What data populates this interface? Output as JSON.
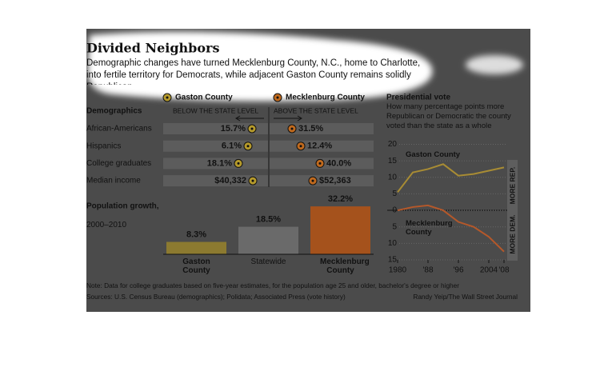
{
  "header": {
    "title": "Divided Neighbors",
    "subtitle": "Demographic changes have turned Mecklenburg County, N.C., home to Charlotte, into fertile territory for Democrats, while adjacent Gaston County remains solidly Republican."
  },
  "legend": [
    "Gaston County",
    "Mecklenburg County"
  ],
  "demographics": {
    "title": "Demographics",
    "below": "BELOW THE STATE LEVEL",
    "above": "ABOVE THE STATE LEVEL",
    "rows": [
      {
        "label": "African-Americans",
        "gaston": "15.7%",
        "mecklenburg": "31.5%"
      },
      {
        "label": "Hispanics",
        "gaston": "6.1%",
        "mecklenburg": "12.4%"
      },
      {
        "label": "College graduates",
        "gaston": "18.1%",
        "mecklenburg": "40.0%"
      },
      {
        "label": "Median income",
        "gaston": "$40,332",
        "mecklenburg": "$52,363"
      }
    ]
  },
  "chart_data": [
    {
      "type": "bar",
      "title": "Population growth,",
      "subtitle": "2000–2010",
      "categories": [
        "Gaston County",
        "Statewide",
        "Mecklenburg County"
      ],
      "values": [
        8.3,
        18.5,
        32.2
      ],
      "value_labels": [
        "8.3%",
        "18.5%",
        "32.2%"
      ],
      "colors": [
        "#8c7a30",
        "#6a6a6a",
        "#a5521c"
      ]
    },
    {
      "type": "line",
      "title": "Presidential vote",
      "subtitle": "How many percentage points more Republican or Democratic the county voted than the state as a whole",
      "x": [
        1980,
        1984,
        1988,
        1992,
        1996,
        2000,
        2004,
        2008
      ],
      "series": [
        {
          "name": "Gaston County",
          "color": "#a88c34",
          "values": [
            5.5,
            11.5,
            12.5,
            14,
            10.5,
            11,
            12,
            13
          ]
        },
        {
          "name": "Mecklenburg County",
          "color": "#b5582a",
          "values": [
            0,
            1,
            1.5,
            0,
            -3.5,
            -5,
            -8,
            -12.5
          ]
        }
      ],
      "xlim": [
        1980,
        2008
      ],
      "xticks": [
        1980,
        {
          "value": 1988,
          "label": "'88"
        },
        {
          "value": 1996,
          "label": "'96"
        },
        2004,
        {
          "value": 2008,
          "label": "'08"
        }
      ],
      "ylim": [
        -15,
        20
      ],
      "yticks": [
        20,
        15,
        10,
        5,
        0,
        {
          "value": -5,
          "label": "5"
        },
        {
          "value": -10,
          "label": "10"
        },
        {
          "value": -15,
          "label": "15"
        }
      ],
      "annotations": [
        "MORE REP.",
        "MORE DEM."
      ],
      "grid": true
    }
  ],
  "notes": {
    "note": "Note: Data for college graduates based on five-year estimates, for the population age 25 and older, bachelor's degree or higher",
    "sources": "Sources: U.S. Census Bureau (demographics); Polidata; Associated Press (vote history)",
    "credit": "Randy Yeip/The Wall Street Journal"
  }
}
